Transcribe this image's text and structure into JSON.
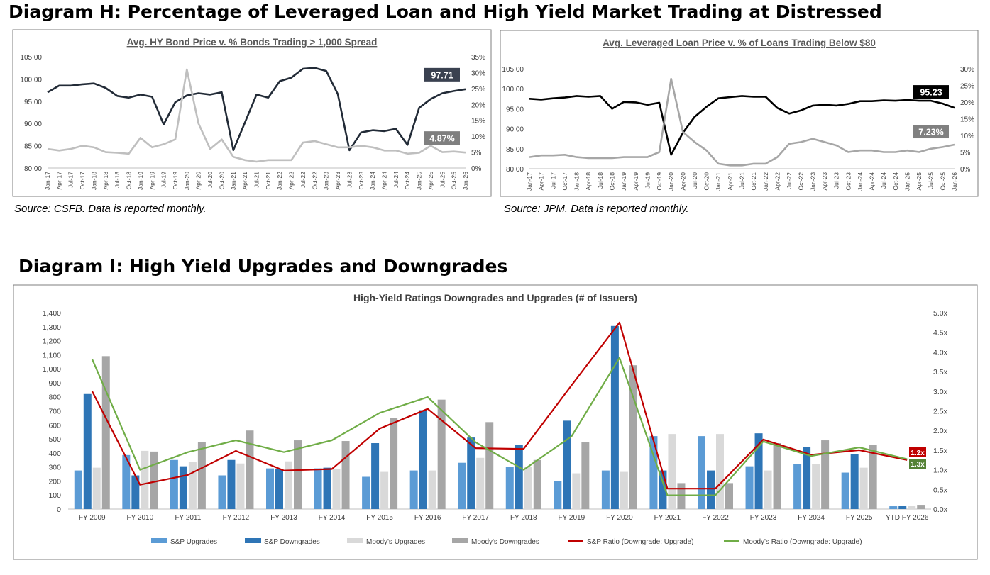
{
  "diagram_h": {
    "title": "Diagram H: Percentage of Leveraged Loan and High Yield Market Trading at Distressed"
  },
  "diagram_i": {
    "title": "Diagram I: High Yield Upgrades and Downgrades"
  },
  "colors": {
    "dark_line": "#222b37",
    "gray_line": "#bfbfbf",
    "black_line": "#000000",
    "gray2_line": "#a6a6a6",
    "sp_up": "#5b9bd5",
    "sp_down": "#2e75b6",
    "moody_up": "#d9d9d9",
    "moody_down": "#a6a6a6",
    "sp_ratio": "#c00000",
    "moody_ratio": "#70ad47"
  },
  "chart_data": [
    {
      "type": "line",
      "title": "Avg. HY Bond Price v. % Bonds Trading > 1,000 Spread",
      "source": "Source: CSFB. Data is reported monthly.",
      "y_left_ticks": [
        "105.00",
        "100.00",
        "95.00",
        "90.00",
        "85.00",
        "80.00"
      ],
      "y_right_ticks": [
        "35%",
        "30%",
        "25%",
        "20%",
        "15%",
        "10%",
        "5%",
        "0%"
      ],
      "ylim_left": [
        80,
        105
      ],
      "ylim_right": [
        0,
        35
      ],
      "x_labels": [
        "Jan-17",
        "Apr-17",
        "Jul-17",
        "Oct-17",
        "Jan-18",
        "Apr-18",
        "Jul-18",
        "Oct-18",
        "Jan-19",
        "Apr-19",
        "Jul-19",
        "Oct-19",
        "Jan-20",
        "Apr-20",
        "Jul-20",
        "Oct-20",
        "Jan-21",
        "Apr-21",
        "Jul-21",
        "Oct-21",
        "Jan-22",
        "Apr-22",
        "Jul-22",
        "Oct-22",
        "Jan-23",
        "Apr-23",
        "Jul-23",
        "Oct-23",
        "Jan-24",
        "Apr-24",
        "Jul-24",
        "Oct-24",
        "Jan-25",
        "Apr-25",
        "Jul-25",
        "Oct-25",
        "Jan-26"
      ],
      "series": [
        {
          "axis": "left",
          "values": [
            97.0,
            98.5,
            98.5,
            98.8,
            99.0,
            98.0,
            96.2,
            95.8,
            96.5,
            96.0,
            89.8,
            94.8,
            96.3,
            96.8,
            96.5,
            97.0,
            84.0,
            90.2,
            96.5,
            95.8,
            99.5,
            100.3,
            102.3,
            102.5,
            101.8,
            96.6,
            84.0,
            88.0,
            88.5,
            88.3,
            88.8,
            85.2,
            93.5,
            95.5,
            96.8,
            97.3,
            97.7
          ]
        },
        {
          "axis": "right",
          "values": [
            6.0,
            5.5,
            6.0,
            7.0,
            6.5,
            5.0,
            4.8,
            4.5,
            9.5,
            6.5,
            7.5,
            9.0,
            31.0,
            14.0,
            6.0,
            9.0,
            3.5,
            2.5,
            2.0,
            2.5,
            2.5,
            2.5,
            8.0,
            8.5,
            7.5,
            6.5,
            6.5,
            7.0,
            6.5,
            5.5,
            5.5,
            4.5,
            4.8,
            7.0,
            5.0,
            5.2,
            4.87
          ]
        }
      ],
      "end_labels": [
        "97.71",
        "4.87%"
      ]
    },
    {
      "type": "line",
      "title": "Avg. Leveraged Loan Price v. % of Loans Trading Below $80",
      "source": "Source: JPM. Data is reported monthly.",
      "y_left_ticks": [
        "105.00",
        "100.00",
        "95.00",
        "90.00",
        "85.00",
        "80.00"
      ],
      "y_right_ticks": [
        "30%",
        "25%",
        "20%",
        "15%",
        "10%",
        "5%",
        "0%"
      ],
      "ylim_left": [
        80,
        105
      ],
      "ylim_right": [
        0,
        30
      ],
      "x_labels": [
        "Jan-17",
        "Apr-17",
        "Jul-17",
        "Oct-17",
        "Jan-18",
        "Apr-18",
        "Jul-18",
        "Oct-18",
        "Jan-19",
        "Apr-19",
        "Jul-19",
        "Oct-19",
        "Jan-20",
        "Apr-20",
        "Jul-20",
        "Oct-20",
        "Jan-21",
        "Apr-21",
        "Jul-21",
        "Oct-21",
        "Jan-22",
        "Apr-22",
        "Jul-22",
        "Oct-22",
        "Jan-23",
        "Apr-23",
        "Jul-23",
        "Oct-23",
        "Jan-24",
        "Apr-24",
        "Jul-24",
        "Oct-24",
        "Jan-25",
        "Apr-25",
        "Jul-25",
        "Oct-25",
        "Jan-26"
      ],
      "series": [
        {
          "axis": "left",
          "values": [
            97.5,
            97.3,
            97.6,
            97.8,
            98.2,
            98.0,
            98.2,
            95.0,
            96.7,
            96.6,
            96.0,
            96.5,
            83.5,
            89.0,
            93.0,
            95.5,
            97.6,
            97.9,
            98.2,
            98.0,
            98.0,
            95.2,
            93.8,
            94.6,
            95.8,
            96.0,
            95.8,
            96.2,
            96.9,
            96.9,
            97.1,
            97.0,
            97.2,
            97.0,
            97.0,
            96.3,
            95.23
          ]
        },
        {
          "axis": "right",
          "values": [
            3.5,
            4.0,
            4.0,
            4.2,
            3.5,
            3.2,
            3.2,
            3.2,
            3.5,
            3.5,
            3.5,
            5.0,
            27.0,
            11.0,
            8.0,
            5.5,
            1.5,
            1.0,
            1.0,
            1.5,
            1.5,
            3.5,
            7.5,
            8.0,
            9.0,
            8.0,
            7.0,
            5.0,
            5.5,
            5.5,
            5.0,
            5.0,
            5.5,
            5.0,
            6.0,
            6.5,
            7.23
          ]
        }
      ],
      "end_labels": [
        "95.23",
        "7.23%"
      ]
    },
    {
      "type": "bar",
      "title": "High-Yield Ratings Downgrades and Upgrades (# of Issuers)",
      "categories": [
        "FY 2009",
        "FY 2010",
        "FY 2011",
        "FY 2012",
        "FY 2013",
        "FY 2014",
        "FY 2015",
        "FY 2016",
        "FY 2017",
        "FY 2018",
        "FY 2019",
        "FY 2020",
        "FY 2021",
        "FY 2022",
        "FY 2023",
        "FY 2024",
        "FY 2025",
        "YTD FY 2026"
      ],
      "y_left_ticks": [
        "1,400",
        "1,300",
        "1,200",
        "1,100",
        "1,000",
        "900",
        "800",
        "700",
        "600",
        "500",
        "400",
        "300",
        "200",
        "100",
        "0"
      ],
      "y_right_ticks": [
        "5.0x",
        "4.5x",
        "4.0x",
        "3.5x",
        "3.0x",
        "2.5x",
        "2.0x",
        "1.5x",
        "1.0x",
        "0.5x",
        "0.0x"
      ],
      "ylim_left": [
        0,
        1400
      ],
      "ylim_right": [
        0,
        5
      ],
      "series": [
        {
          "name": "S&P Upgrades",
          "values": [
            275,
            385,
            350,
            240,
            290,
            290,
            230,
            275,
            330,
            300,
            200,
            275,
            520,
            520,
            305,
            320,
            260,
            20
          ]
        },
        {
          "name": "S&P Downgrades",
          "values": [
            820,
            240,
            305,
            350,
            285,
            295,
            470,
            705,
            510,
            455,
            630,
            1305,
            275,
            275,
            540,
            440,
            390,
            25
          ]
        },
        {
          "name": "Moody's Upgrades",
          "values": [
            295,
            415,
            335,
            325,
            340,
            285,
            265,
            275,
            365,
            300,
            255,
            265,
            535,
            535,
            275,
            320,
            295,
            25
          ]
        },
        {
          "name": "Moody's Downgrades",
          "values": [
            1090,
            410,
            480,
            560,
            490,
            485,
            650,
            780,
            620,
            350,
            475,
            1025,
            185,
            185,
            470,
            490,
            455,
            30
          ]
        },
        {
          "name": "S&P Ratio (Downgrade: Upgrade)",
          "axis": "right",
          "values": [
            3.0,
            0.62,
            0.87,
            1.48,
            0.98,
            1.02,
            2.05,
            2.55,
            1.55,
            1.53,
            3.15,
            4.75,
            0.52,
            0.52,
            1.77,
            1.38,
            1.5,
            1.25
          ]
        },
        {
          "name": "Moody's Ratio (Downgrade: Upgrade)",
          "axis": "right",
          "values": [
            3.82,
            1.0,
            1.45,
            1.75,
            1.45,
            1.75,
            2.45,
            2.85,
            1.7,
            1.0,
            1.85,
            3.85,
            0.35,
            0.35,
            1.72,
            1.35,
            1.57,
            1.27
          ]
        }
      ],
      "end_labels": [
        "1.2x",
        "1.3x"
      ]
    }
  ]
}
